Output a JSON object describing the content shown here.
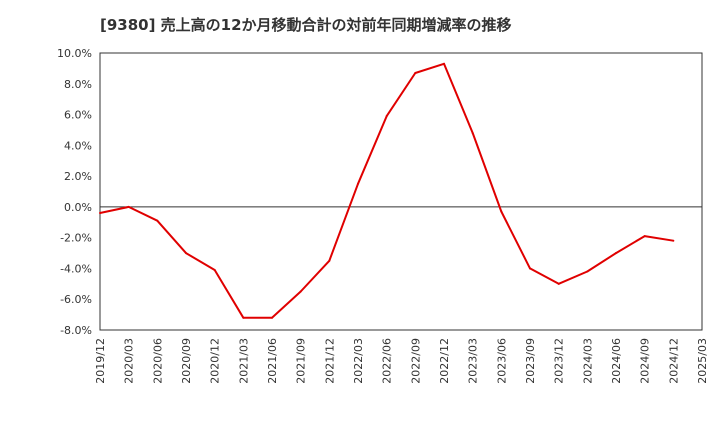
{
  "chart_data": {
    "type": "line",
    "title": "[9380]  売上高の12か月移動合計の対前年同期増減率の推移",
    "xlabel": "",
    "ylabel": "",
    "ylim": [
      -8.0,
      10.0
    ],
    "yticks": [
      -8.0,
      -6.0,
      -4.0,
      -2.0,
      0.0,
      2.0,
      4.0,
      6.0,
      8.0,
      10.0
    ],
    "ytick_labels": [
      "-8.0%",
      "-6.0%",
      "-4.0%",
      "-2.0%",
      "0.0%",
      "2.0%",
      "4.0%",
      "6.0%",
      "8.0%",
      "10.0%"
    ],
    "categories": [
      "2019/12",
      "2020/03",
      "2020/06",
      "2020/09",
      "2020/12",
      "2021/03",
      "2021/06",
      "2021/09",
      "2021/12",
      "2022/03",
      "2022/06",
      "2022/09",
      "2022/12",
      "2023/03",
      "2023/06",
      "2023/09",
      "2023/12",
      "2024/03",
      "2024/06",
      "2024/09",
      "2024/12",
      "2025/03"
    ],
    "grid": true,
    "series": [
      {
        "name": "売上高の12か月移動合計の対前年同期増減率",
        "color": "#e00000",
        "values": [
          -0.4,
          0.0,
          -0.9,
          -3.0,
          -4.1,
          -7.2,
          -7.2,
          -5.5,
          -3.5,
          1.5,
          5.9,
          8.7,
          9.3,
          4.8,
          -0.3,
          -4.0,
          -5.0,
          -4.2,
          -3.0,
          -1.9,
          -2.2,
          null
        ]
      }
    ]
  }
}
